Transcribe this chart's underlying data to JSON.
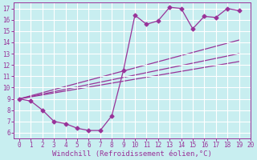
{
  "xlabel": "Windchill (Refroidissement éolien,°C)",
  "xlim": [
    -0.5,
    20
  ],
  "ylim": [
    5.5,
    17.5
  ],
  "yticks": [
    6,
    7,
    8,
    9,
    10,
    11,
    12,
    13,
    14,
    15,
    16,
    17
  ],
  "xticks": [
    0,
    1,
    2,
    3,
    4,
    5,
    6,
    7,
    8,
    9,
    10,
    11,
    12,
    13,
    14,
    15,
    16,
    17,
    18,
    19,
    20
  ],
  "bg_color": "#c8eef0",
  "grid_color": "#ffffff",
  "line_color": "#993399",
  "line1_x": [
    0,
    1,
    2,
    3,
    4,
    5,
    6,
    7,
    8,
    9,
    10,
    11,
    12,
    13,
    14,
    15,
    16,
    17,
    18,
    19
  ],
  "line1_y": [
    9.0,
    8.8,
    8.0,
    7.0,
    6.8,
    6.4,
    6.2,
    6.2,
    7.5,
    11.5,
    16.4,
    15.6,
    15.9,
    17.1,
    17.0,
    15.2,
    16.3,
    16.2,
    17.0,
    16.8
  ],
  "line2_x": [
    0,
    19
  ],
  "line2_y": [
    9.0,
    14.2
  ],
  "line3_x": [
    0,
    19
  ],
  "line3_y": [
    9.0,
    13.0
  ],
  "line4_x": [
    0,
    19
  ],
  "line4_y": [
    9.0,
    12.3
  ],
  "marker": "D",
  "markersize": 2.5,
  "linewidth": 0.9,
  "tick_fontsize": 5.5,
  "xlabel_fontsize": 6.5
}
